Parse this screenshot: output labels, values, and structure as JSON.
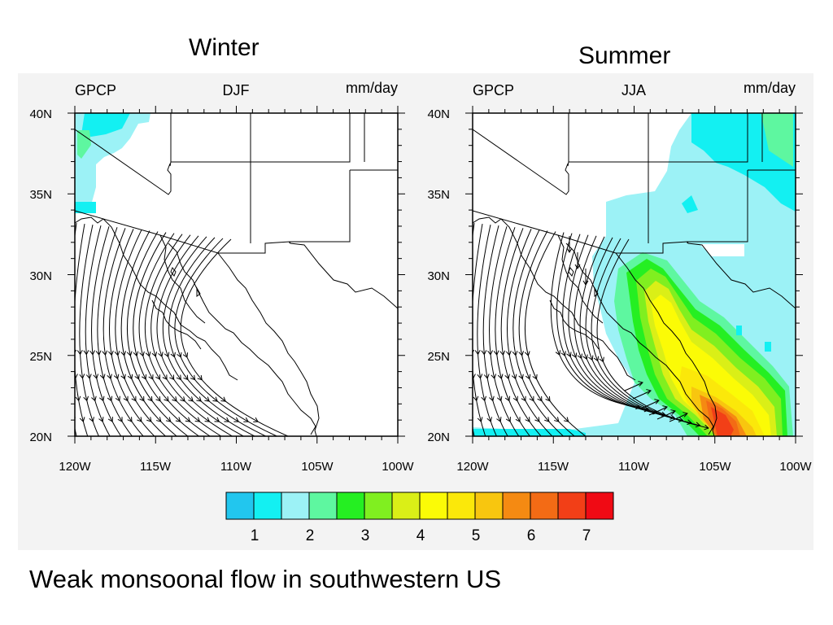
{
  "slide": {
    "caption": "Weak monsoonal flow in southwestern US",
    "panel_titles": {
      "winter": "Winter",
      "summer": "Summer"
    }
  },
  "panels": [
    {
      "id": "djf",
      "dataset": "GPCP",
      "season": "DJF",
      "units": "mm/day"
    },
    {
      "id": "jja",
      "dataset": "GPCP",
      "season": "JJA",
      "units": "mm/day"
    }
  ],
  "map_axes": {
    "lat_labels": [
      "40N",
      "35N",
      "30N",
      "25N",
      "20N"
    ],
    "lon_labels": [
      "120W",
      "115W",
      "110W",
      "105W",
      "100W"
    ],
    "lat_range": [
      20,
      40
    ],
    "lon_range": [
      -120,
      -100
    ]
  },
  "colorbar": {
    "colors": [
      "#22c6ee",
      "#13f0f2",
      "#9cf2f6",
      "#5ef7a0",
      "#25ef22",
      "#80ef20",
      "#daef17",
      "#fbfb06",
      "#fbe80a",
      "#f8c60f",
      "#f58a12",
      "#f36b15",
      "#f23f17",
      "#f00a14"
    ],
    "labels": [
      "1",
      "2",
      "3",
      "4",
      "5",
      "6",
      "7"
    ]
  }
}
